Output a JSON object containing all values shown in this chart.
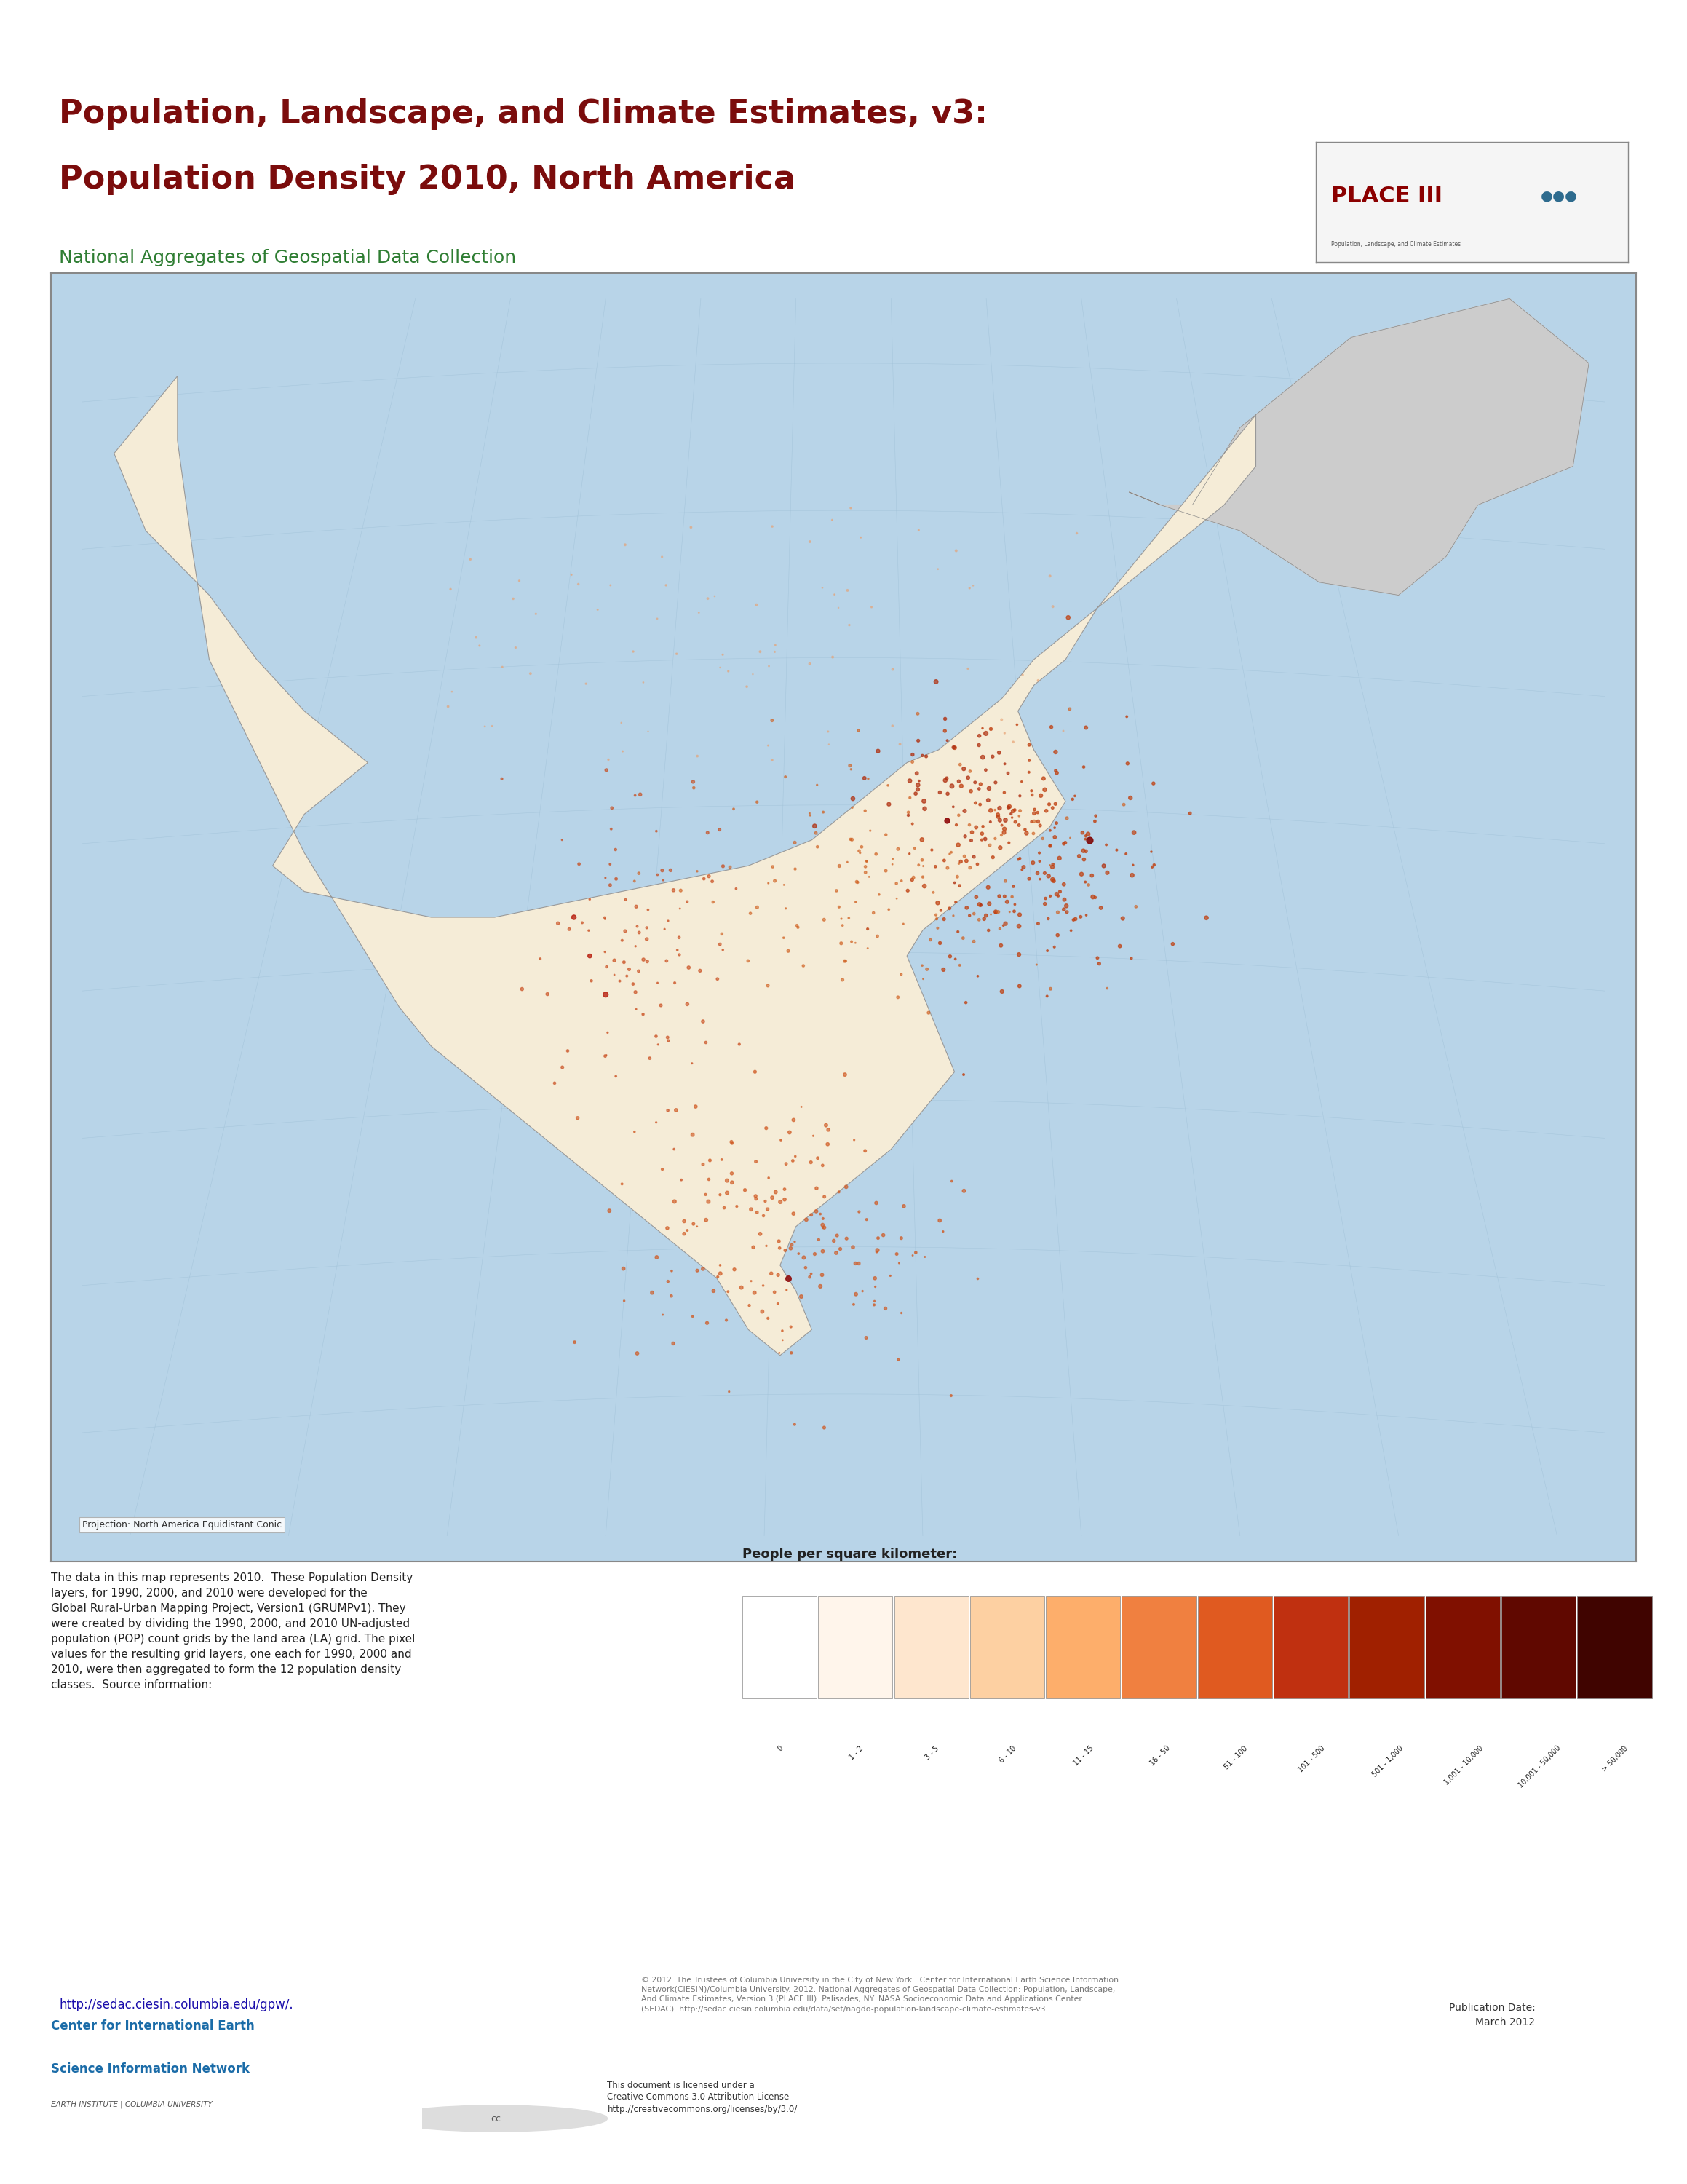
{
  "title_line1": "Population, Landscape, and Climate Estimates, v3:",
  "title_line2": "Population Density 2010, North America",
  "subtitle": "National Aggregates of Geospatial Data Collection",
  "title_color": "#7B0C0C",
  "subtitle_color": "#2E7D32",
  "title_fontsize": 32,
  "subtitle_fontsize": 18,
  "background_color": "#FFFFFF",
  "map_bg_color": "#B8D4E8",
  "map_border_color": "#888888",
  "projection_text": "Projection: North America Equidistant Conic",
  "legend_title": "People per square kilometer:",
  "legend_labels": [
    "0",
    "1 - 2",
    "3 - 5",
    "6 - 10",
    "11 - 15",
    "16 - 50",
    "51 - 100",
    "101 - 500",
    "501 - 1,000",
    "1,001 - 10,000",
    "10,001 - 50,000",
    "> 50,000"
  ],
  "legend_colors": [
    "#FFFFFF",
    "#FFF5EB",
    "#FEE6CE",
    "#FDD0A2",
    "#FDAE6B",
    "#F08040",
    "#E05A20",
    "#C03010",
    "#A02000",
    "#801000",
    "#600800",
    "#400400"
  ],
  "description_text": "The data in this map represents 2010.  These Population Density\nlayers, for 1990, 2000, and 2010 were developed for the\nGlobal Rural-Urban Mapping Project, Version1 (GRUMPv1). They\nwere created by dividing the 1990, 2000, and 2010 UN-adjusted\npopulation (POP) count grids by the land area (LA) grid. The pixel\nvalues for the resulting grid layers, one each for 1990, 2000 and\n2010, were then aggregated to form the 12 population density\nclasses.  Source information:",
  "url_text": "http://sedac.ciesin.columbia.edu/gpw/.",
  "ciesin_text1": "Center for International Earth",
  "ciesin_text2": "Science Information Network",
  "ciesin_text3": "EARTH INSTITUTE | COLUMBIA UNIVERSITY",
  "copyright_text": "© 2012. The Trustees of Columbia University in the City of New York.  Center for International Earth Science Information\nNetwork(CIESIN)/Columbia University. 2012. National Aggregates of Geospatial Data Collection: Population, Landscape,\nAnd Climate Estimates, Version 3 (PLACE III). Palisades, NY: NASA Socioeconomic Data and Applications Center\n(SEDAC). http://sedac.ciesin.columbia.edu/data/set/nagdo-population-landscape-climate-estimates-v3.",
  "publication_text": "Publication Date:\nMarch 2012",
  "place_iii_text": "PLACE III",
  "cc_license_text": "This document is licensed under a\nCreative Commons 3.0 Attribution License\nhttp://creativecommons.org/licenses/by/3.0/",
  "header_line_color": "#4A7C59",
  "place_box_color": "#8B0000",
  "place_text_color": "#FFFFFF"
}
